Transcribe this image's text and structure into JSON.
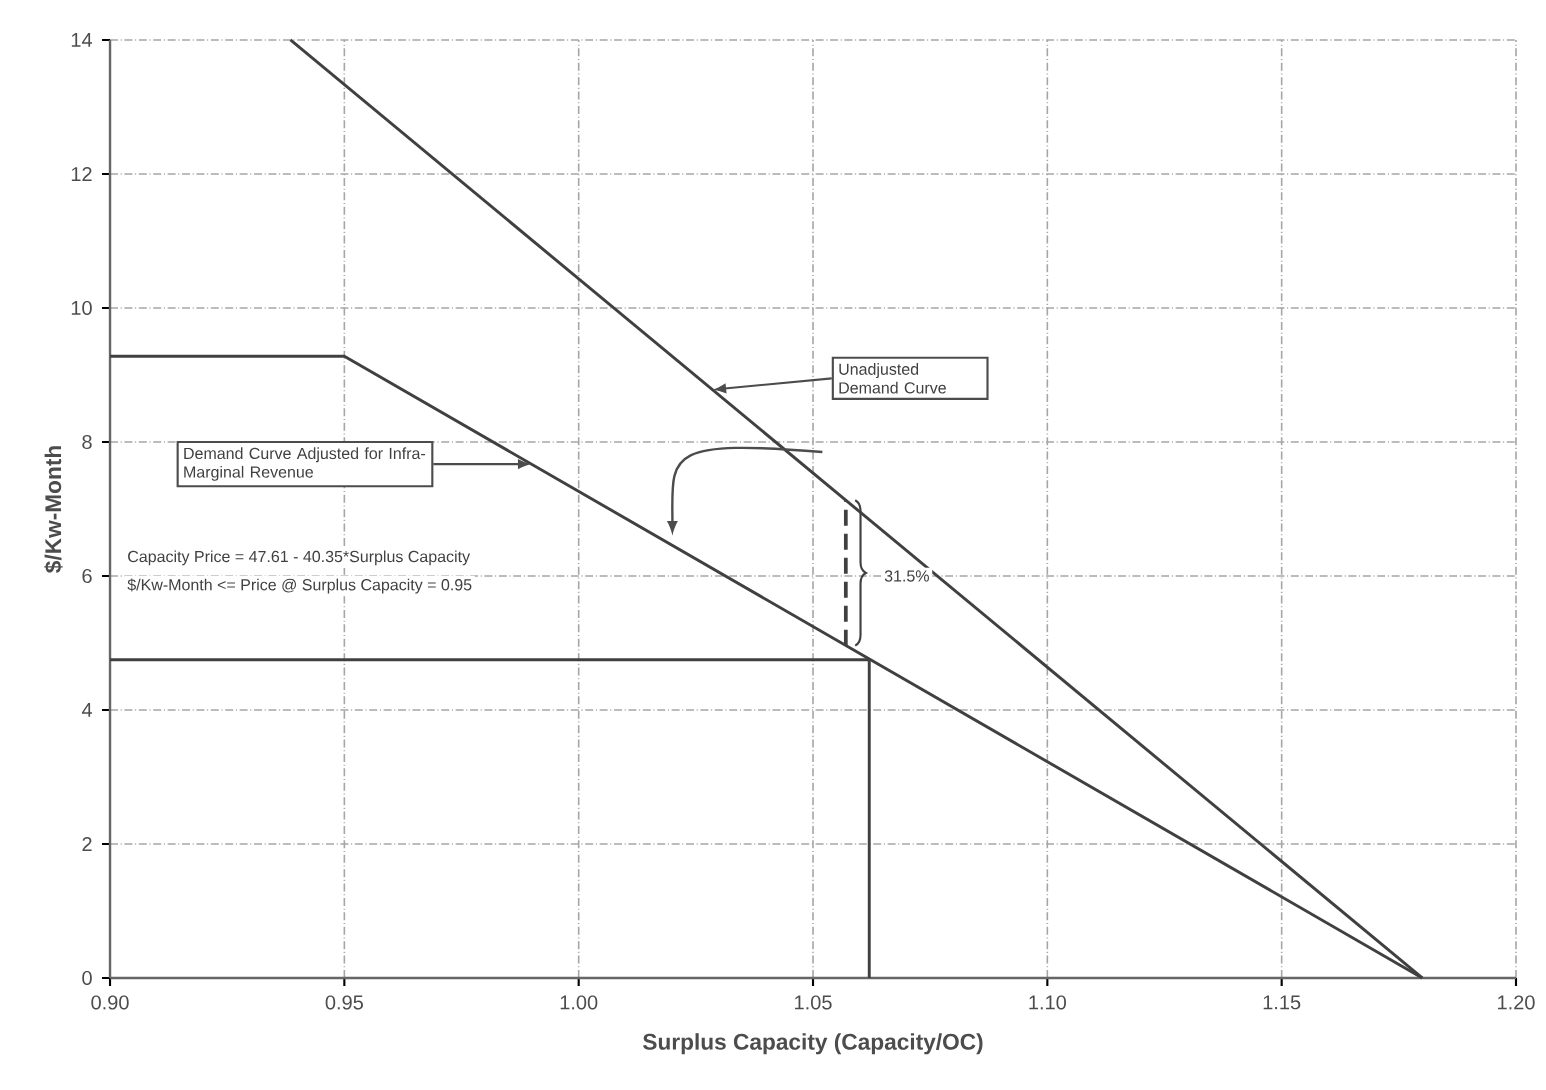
{
  "chart_data": {
    "type": "line",
    "xlabel": "Surplus Capacity (Capacity/OC)",
    "ylabel": "$/Kw-Month",
    "xlim": [
      0.9,
      1.2
    ],
    "ylim": [
      0,
      14
    ],
    "xticks": [
      {
        "value": 0.9,
        "label": "0.90"
      },
      {
        "value": 0.95,
        "label": "0.95"
      },
      {
        "value": 1.0,
        "label": "1.00"
      },
      {
        "value": 1.05,
        "label": "1.05"
      },
      {
        "value": 1.1,
        "label": "1.10"
      },
      {
        "value": 1.15,
        "label": "1.15"
      },
      {
        "value": 1.2,
        "label": "1.20"
      }
    ],
    "yticks": [
      0,
      2,
      4,
      6,
      8,
      10,
      12,
      14
    ],
    "grid": true,
    "marker": "none",
    "series": [
      {
        "x": [
          0.9385,
          1.18
        ],
        "values": [
          14,
          0
        ],
        "color": "#404040"
      },
      {
        "x": [
          0.9,
          0.95,
          1.18
        ],
        "values": [
          9.28,
          9.28,
          0
        ],
        "color": "#404040"
      },
      {
        "x": [
          0.9,
          1.062,
          1.062
        ],
        "values": [
          4.75,
          4.75,
          0
        ],
        "color": "#404040"
      },
      {
        "x": [
          1.057,
          1.057
        ],
        "values": [
          4.96,
          7.13
        ],
        "color": "#404040",
        "line_style": "dashed"
      }
    ],
    "annotations": [
      {
        "text": "Unadjusted Demand Curve",
        "x": 1.0285,
        "y": 8.78
      },
      {
        "text": "Demand Curve Adjusted for Infra-Marginal Revenue",
        "x": 0.99,
        "y": 7.67
      },
      "Capacity Price = 47.61 - 40.35*Surplus Capacity",
      "$/Kw-Month <= Price @ Surplus Capacity = 0.95",
      {
        "text": "31.5%",
        "x": 1.057,
        "y": 6
      }
    ]
  }
}
